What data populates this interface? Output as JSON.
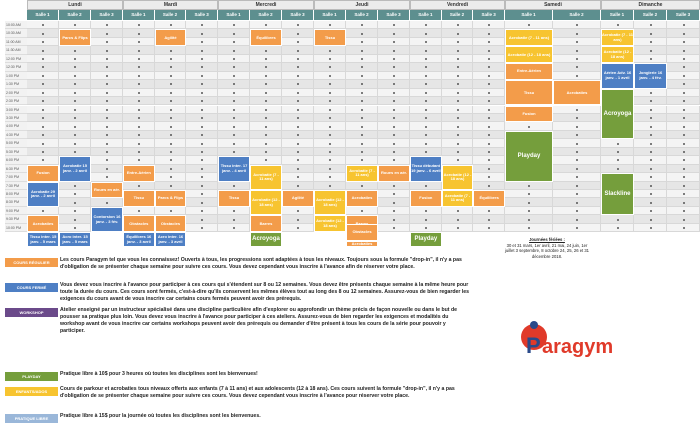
{
  "days": [
    "Lundi",
    "Mardi",
    "Mercredi",
    "Jeudi",
    "Vendredi",
    "Samedi",
    "Dimanche"
  ],
  "salle_labels": [
    "Salle 1",
    "Salle 2",
    "Salle 3",
    "Salle 1",
    "Salle 2",
    "Salle 3",
    "Salle 1",
    "Salle 2",
    "Salle 3",
    "Salle 1",
    "Salle 2",
    "Salle 3",
    "Salle 1",
    "Salle 2",
    "Salle 3",
    "Salle 1",
    "Salle 2",
    "Salle 1",
    "Salle 2",
    "Salle 3"
  ],
  "times": [
    "10:00 AM",
    "10:30 AM",
    "11:00 AM",
    "11:30 AM",
    "12:00 PM",
    "12:30 PM",
    "1:00 PM",
    "1:30 PM",
    "2:00 PM",
    "2:30 PM",
    "3:00 PM",
    "3:30 PM",
    "4:00 PM",
    "4:30 PM",
    "5:00 PM",
    "5:30 PM",
    "6:00 PM",
    "6:30 PM",
    "7:00 PM",
    "7:30 PM",
    "8:00 PM",
    "8:30 PM",
    "9:00 PM",
    "9:30 PM",
    "10:00 PM"
  ],
  "blocks": [
    {
      "t": "Parcs & Flips",
      "c": "b-or"
    },
    {
      "t": "Agilité",
      "c": "b-or"
    },
    {
      "t": "Équilibres",
      "c": "b-or"
    },
    {
      "t": "Tissu",
      "c": "b-or"
    },
    {
      "t": "Acrobatie (7 - 11 ans)",
      "c": "b-yw"
    },
    {
      "t": "Acrobatie (7 - 11 ans)",
      "c": "b-yw"
    },
    {
      "t": "Acrobatie (12 - 18 ans)",
      "c": "b-yw"
    },
    {
      "t": "Acrobatie (12 - 18 ans)",
      "c": "b-yw"
    },
    {
      "t": "Entre-Aérien",
      "c": "b-or"
    },
    {
      "t": "Aérien Adv. 16 janv. - 1 avril",
      "c": "b-bl"
    },
    {
      "t": "Jonglerie 16 janv. - 4 fév.",
      "c": "b-bl"
    },
    {
      "t": "Tissu",
      "c": "b-or"
    },
    {
      "t": "Acrobaties",
      "c": "b-or"
    },
    {
      "t": "Fusion",
      "c": "b-or"
    },
    {
      "t": "Acroyoga",
      "c": "b-gr"
    },
    {
      "t": "Playday",
      "c": "b-gr"
    },
    {
      "t": "Fusion",
      "c": "b-or"
    },
    {
      "t": "Acrobatie 15 janv. - 2 avril",
      "c": "b-bl"
    },
    {
      "t": "Entre-Aérien",
      "c": "b-or"
    },
    {
      "t": "Tissu inter. 17 janv. - 4 avril",
      "c": "b-bl"
    },
    {
      "t": "Acrobatie (7 - 11 ans)",
      "c": "b-yw"
    },
    {
      "t": "Acrobatie (7 - 11 ans)",
      "c": "b-yw"
    },
    {
      "t": "Roues en aér.",
      "c": "b-or"
    },
    {
      "t": "Tissu débutant 19 janv. - 6 avril",
      "c": "b-bl"
    },
    {
      "t": "Acrobatie (12 - 18 ans)",
      "c": "b-yw"
    },
    {
      "t": "Acrobatie 29 janv. - 2 avril",
      "c": "b-bl"
    },
    {
      "t": "Roues en aér.",
      "c": "b-or"
    },
    {
      "t": "Tissu",
      "c": "b-or"
    },
    {
      "t": "Parcs & Flips",
      "c": "b-or"
    },
    {
      "t": "Tissu",
      "c": "b-or"
    },
    {
      "t": "Acrobatie (12 - 18 ans)",
      "c": "b-yw"
    },
    {
      "t": "Agilité",
      "c": "b-or"
    },
    {
      "t": "Acrobatie (12 - 18 ans)",
      "c": "b-yw"
    },
    {
      "t": "Fusion",
      "c": "b-or"
    },
    {
      "t": "Acrobatie (7 - 11 ans)",
      "c": "b-yw"
    },
    {
      "t": "Équilibres",
      "c": "b-or"
    },
    {
      "t": "Slackline",
      "c": "b-gr"
    },
    {
      "t": "Acrobaties",
      "c": "b-or"
    },
    {
      "t": "Contorsion 16 janv. - 3 fév.",
      "c": "b-bl"
    },
    {
      "t": "Obstacles",
      "c": "b-or"
    },
    {
      "t": "Barres",
      "c": "b-or"
    },
    {
      "t": "Acrobatie (12 - 18 ans)",
      "c": "b-yw"
    },
    {
      "t": "Barres",
      "c": "b-or"
    },
    {
      "t": "Acrobaties",
      "c": "b-or"
    },
    {
      "t": "Obstacles",
      "c": "b-or"
    },
    {
      "t": "Tissu inter. 15 janv. - 5 mars",
      "c": "b-bl"
    },
    {
      "t": "Acro inter. 15 janv. - 5 mars",
      "c": "b-bl"
    },
    {
      "t": "Équilibres 16 janv. - 3 avril",
      "c": "b-bl"
    },
    {
      "t": "Acro inter. 16 janv. - 3 avril",
      "c": "b-bl"
    },
    {
      "t": "Acroyoga",
      "c": "b-gr"
    },
    {
      "t": "Acrobaties",
      "c": "b-or"
    },
    {
      "t": "Playday",
      "c": "b-gr"
    },
    {
      "t": "Obstacles",
      "c": "b-or"
    }
  ],
  "feries_title": "Journées fériées :",
  "feries_text": "30 et 31 mars, 1er avril, 21 mai, 24 juin, 1er juillet 3 septembre, 8 octobre 24, 25, 26 et 31 décembre 2018.",
  "legend": [
    {
      "label": "COURS RÉGULIER",
      "color": "#f39c4a",
      "text": "Les cours Paragym tel que vous les connaissez! Ouverts à tous, les progressions sont adaptées à tous les niveaux. Toujours sous la formule \"drop-in\", il n'y a pas d'obligation de se présenter chaque semaine pour suivre ces cours. Vous devez cependant vous inscrire à l'avance afin de réserver votre place."
    },
    {
      "label": "COURS FERMÉ",
      "color": "#4e7fc4",
      "text": "Vous devez vous inscrire à l'avance pour participer à ces cours qui s'étendent sur 8 ou 12 semaines. Vous devez être présents chaque semaine à la même heure pour toute la durée du cours. Ces cours sont fermés, c'est-à-dire qu'ils conservent les mêmes élèves tout au long des 8 ou 12 semaines. Assurez-vous de bien regarder les exigences du cours avant de vous inscrire car certains cours fermés peuvent avoir des prérequis."
    },
    {
      "label": "WORKSHOP",
      "color": "#6b4a8a",
      "text": "Atelier enseigné par un instructeur spécialisé dans une discipline particulière afin d'explorer ou approfondir un thème précis de façon nouvelle ou dans le but de pousser sa pratique plus loin. Vous devez vous inscrire à l'avance pour participer à ces ateliers. Assurez-vous de bien regarder les exigences et modalités du workshop avant de vous inscrire car certains workshops peuvent avoir des prérequis ou demander d'être présent à tous les cours de la série pour pouvoir y participer."
    },
    {
      "label": "PLAYDAY",
      "color": "#759e3c",
      "text": "Pratique libre à 10$ pour 3 heures où toutes les disciplines sont les bienvenues!"
    },
    {
      "label": "ENFANTS/ADOS",
      "color": "#f7c430",
      "text": "Cours de parkour et acrobaties tous niveaux offerts aux enfants (7 à 11 ans) et aux adolescents (12 à 18 ans). Ces cours suivent la formule \"drop-in\", il n'y a pas d'obligation de se présenter chaque semaine pour suivre ces cours. Vous devez cependant vous inscrire à l'avance pour réserver votre place."
    },
    {
      "label": "PRATIQUE LIBRE",
      "color": "#9ab7d9",
      "text": "Pratique libre à 15$ pour la journée où toutes les disciplines sont les bienvenues."
    }
  ],
  "logo_text": "aragym",
  "logo_letter": "P",
  "colors": {
    "orange": "#f39c4a",
    "yellow": "#f7c430",
    "blue": "#4e7fc4",
    "green": "#759e3c",
    "teal": "#5d8f8f",
    "purple": "#6b4a8a",
    "logo_blue": "#2a4a8a",
    "logo_red": "#e03a2a"
  }
}
